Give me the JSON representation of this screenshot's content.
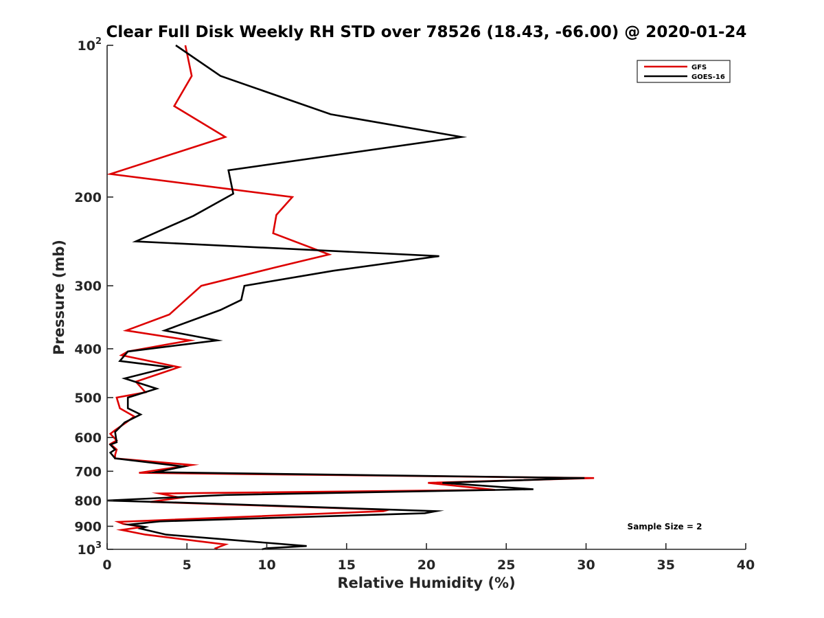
{
  "chart_data": {
    "type": "line",
    "title": "Clear Full Disk Weekly RH STD over 78526 (18.43, -66.00) @ 2020-01-24",
    "xlabel": "Relative Humidity (%)",
    "ylabel": "Pressure (mb)",
    "xlim": [
      0,
      40
    ],
    "ylim": [
      100,
      1000
    ],
    "y_scale": "log",
    "y_reversed": true,
    "x_ticks": [
      0,
      5,
      10,
      15,
      20,
      25,
      30,
      35,
      40
    ],
    "y_ticks": [
      {
        "value": 100,
        "label": "10",
        "sup": "2"
      },
      {
        "value": 200,
        "label": "200",
        "sup": ""
      },
      {
        "value": 300,
        "label": "300",
        "sup": ""
      },
      {
        "value": 400,
        "label": "400",
        "sup": ""
      },
      {
        "value": 500,
        "label": "500",
        "sup": ""
      },
      {
        "value": 600,
        "label": "600",
        "sup": ""
      },
      {
        "value": 700,
        "label": "700",
        "sup": ""
      },
      {
        "value": 800,
        "label": "800",
        "sup": ""
      },
      {
        "value": 900,
        "label": "900",
        "sup": ""
      },
      {
        "value": 1000,
        "label": "10",
        "sup": "3"
      }
    ],
    "legend_position": "top-right",
    "annotation": "Sample Size = 2",
    "series": [
      {
        "name": "GFS",
        "color": "#dd0000",
        "points": [
          [
            4.9,
            100
          ],
          [
            5.3,
            115
          ],
          [
            4.2,
            132
          ],
          [
            7.4,
            152
          ],
          [
            0.2,
            180
          ],
          [
            11.6,
            200
          ],
          [
            10.6,
            217
          ],
          [
            10.4,
            236
          ],
          [
            13.9,
            260
          ],
          [
            10.5,
            276
          ],
          [
            5.9,
            300
          ],
          [
            3.9,
            342
          ],
          [
            1.2,
            368
          ],
          [
            5.2,
            385
          ],
          [
            1.3,
            405
          ],
          [
            0.9,
            412
          ],
          [
            4.5,
            435
          ],
          [
            1.8,
            465
          ],
          [
            2.4,
            488
          ],
          [
            0.6,
            500
          ],
          [
            0.8,
            525
          ],
          [
            1.7,
            545
          ],
          [
            1.2,
            560
          ],
          [
            0.5,
            580
          ],
          [
            0.2,
            590
          ],
          [
            0.6,
            608
          ],
          [
            0.2,
            618
          ],
          [
            0.6,
            634
          ],
          [
            0.5,
            650
          ],
          [
            0.5,
            660
          ],
          [
            5.3,
            680
          ],
          [
            2.0,
            705
          ],
          [
            30.5,
            722
          ],
          [
            20.1,
            738
          ],
          [
            24.3,
            762
          ],
          [
            3.3,
            775
          ],
          [
            4.6,
            790
          ],
          [
            2.7,
            805
          ],
          [
            17.6,
            835
          ],
          [
            17.3,
            840
          ],
          [
            0.7,
            882
          ],
          [
            1.0,
            890
          ],
          [
            2.2,
            903
          ],
          [
            0.9,
            915
          ],
          [
            2.4,
            935
          ],
          [
            7.4,
            978
          ],
          [
            6.8,
            995
          ],
          [
            6.9,
            1000
          ]
        ]
      },
      {
        "name": "GOES-16",
        "color": "#000000",
        "points": [
          [
            4.3,
            100
          ],
          [
            7.1,
            115
          ],
          [
            14.0,
            137
          ],
          [
            22.2,
            152
          ],
          [
            7.6,
            177
          ],
          [
            7.9,
            197
          ],
          [
            5.4,
            218
          ],
          [
            1.8,
            245
          ],
          [
            20.8,
            262
          ],
          [
            14.2,
            280
          ],
          [
            8.6,
            300
          ],
          [
            8.4,
            320
          ],
          [
            7.1,
            335
          ],
          [
            3.6,
            368
          ],
          [
            6.9,
            385
          ],
          [
            1.3,
            405
          ],
          [
            0.8,
            423
          ],
          [
            3.9,
            435
          ],
          [
            1.1,
            458
          ],
          [
            3.1,
            480
          ],
          [
            1.3,
            500
          ],
          [
            1.3,
            525
          ],
          [
            2.1,
            540
          ],
          [
            1.1,
            560
          ],
          [
            0.5,
            585
          ],
          [
            0.6,
            613
          ],
          [
            0.2,
            620
          ],
          [
            0.5,
            634
          ],
          [
            0.2,
            643
          ],
          [
            0.5,
            660
          ],
          [
            4.8,
            685
          ],
          [
            3.0,
            703
          ],
          [
            29.9,
            722
          ],
          [
            21.0,
            738
          ],
          [
            26.7,
            760
          ],
          [
            7.4,
            780
          ],
          [
            0.0,
            800
          ],
          [
            5.8,
            810
          ],
          [
            20.6,
            840
          ],
          [
            19.9,
            848
          ],
          [
            3.3,
            880
          ],
          [
            1.4,
            893
          ],
          [
            2.4,
            903
          ],
          [
            2.1,
            910
          ],
          [
            3.7,
            935
          ],
          [
            12.5,
            985
          ],
          [
            10.0,
            995
          ],
          [
            9.7,
            1000
          ]
        ]
      }
    ]
  }
}
